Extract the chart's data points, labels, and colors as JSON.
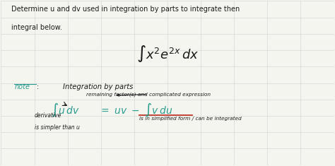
{
  "bg_color": "#f5f5f0",
  "grid_color": "#d8d8d8",
  "text_color_black": "#1a1a1a",
  "text_color_teal": "#2a9d8f",
  "text_color_green": "#3a7d44",
  "text_color_red": "#c0392b",
  "line1": "Determine u and dv used in integration by parts to integrate then",
  "line2": "integral below.",
  "note_label": "note",
  "note_text": "Integration by parts",
  "arrow_text": "remaining factor(s) and complicated expression",
  "deriv_text1": "derivative",
  "deriv_text2": "is simpler than u",
  "simplified_text": "is in simplified form / can be integrated"
}
